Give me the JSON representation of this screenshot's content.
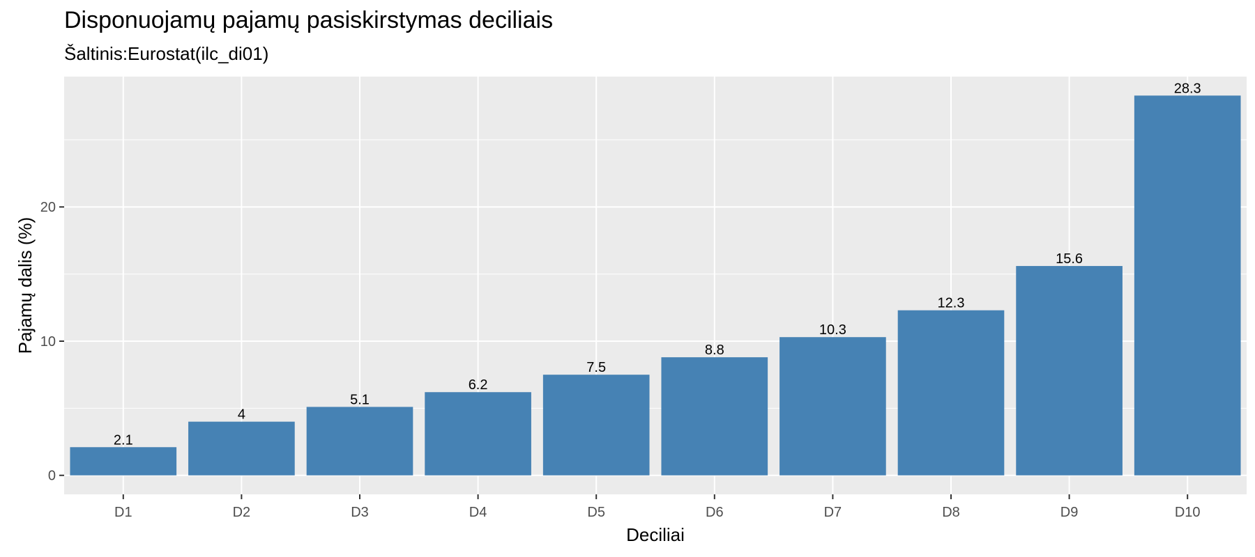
{
  "chart_data": {
    "type": "bar",
    "title": "Disponuojamų pajamų pasiskirstymas deciliais",
    "subtitle": "Šaltinis:Eurostat(ilc_di01)",
    "xlabel": "Deciliai",
    "ylabel": "Pajamų dalis (%)",
    "categories": [
      "D1",
      "D2",
      "D3",
      "D4",
      "D5",
      "D6",
      "D7",
      "D8",
      "D9",
      "D10"
    ],
    "values": [
      2.1,
      4,
      5.1,
      6.2,
      7.5,
      8.8,
      10.3,
      12.3,
      15.6,
      28.3
    ],
    "value_labels": [
      "2.1",
      "4",
      "5.1",
      "6.2",
      "7.5",
      "8.8",
      "10.3",
      "12.3",
      "15.6",
      "28.3"
    ],
    "yticks": [
      0,
      10,
      20
    ],
    "ylim": [
      -1.415,
      29.715
    ],
    "grid": true,
    "legend": "none",
    "colors": {
      "bar": "#4682B4",
      "panel": "#EBEBEB",
      "grid": "#FFFFFF"
    }
  }
}
